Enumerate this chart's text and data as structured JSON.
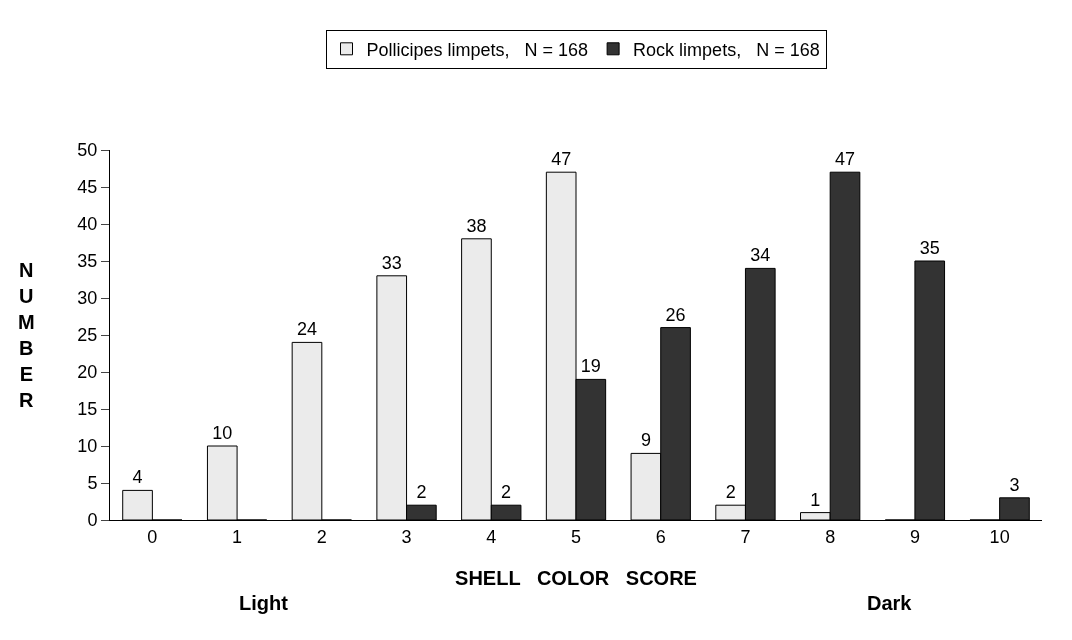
{
  "chart_data": {
    "type": "bar",
    "xlabel": "SHELL   COLOR   SCORE",
    "ylabel": "NUMBER",
    "categories": [
      "0",
      "1",
      "2",
      "3",
      "4",
      "5",
      "6",
      "7",
      "8",
      "9",
      "10"
    ],
    "series": [
      {
        "name": "Pollicipes limpets,   N = 168",
        "color": "#ebebeb",
        "values": [
          4,
          10,
          24,
          33,
          38,
          47,
          9,
          2,
          1,
          0,
          0
        ],
        "value_labels": [
          "4",
          "10",
          "24",
          "33",
          "38",
          "47",
          "9",
          "2",
          "1",
          null,
          null
        ]
      },
      {
        "name": "Rock limpets,   N = 168",
        "color": "#333333",
        "values": [
          0,
          0,
          0,
          2,
          2,
          19,
          26,
          34,
          47,
          35,
          3
        ],
        "value_labels": [
          null,
          null,
          null,
          "2",
          "2",
          "19",
          "26",
          "34",
          "47",
          "35",
          "3"
        ]
      }
    ],
    "ylim": [
      0,
      50
    ],
    "yticks": [
      0,
      5,
      10,
      15,
      20,
      25,
      30,
      35,
      40,
      45,
      50
    ],
    "annotations": [
      "Light",
      "Dark"
    ],
    "legend": "top",
    "grid": false
  }
}
